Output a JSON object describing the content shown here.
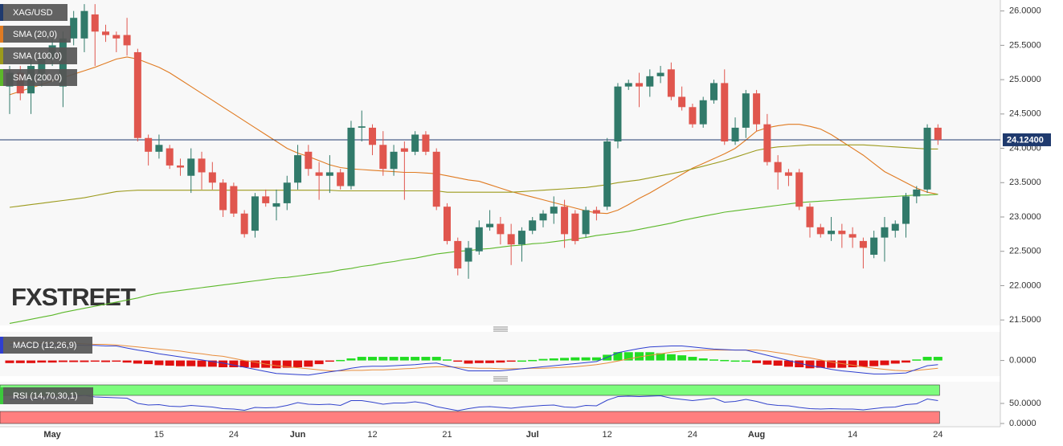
{
  "chart_data": [
    {
      "type": "candlestick",
      "name": "XAG/USD",
      "legend_color": "#1f3a6e",
      "up_color": "#317a6a",
      "down_color": "#e0564e",
      "categories": [
        null,
        null,
        null,
        null,
        "May",
        null,
        null,
        null,
        null,
        null,
        null,
        null,
        null,
        null,
        "15",
        null,
        null,
        null,
        null,
        null,
        null,
        "24",
        null,
        null,
        null,
        null,
        null,
        "Jun",
        null,
        null,
        null,
        null,
        null,
        null,
        "12",
        null,
        null,
        null,
        null,
        null,
        null,
        "21",
        null,
        null,
        null,
        null,
        null,
        null,
        null,
        "Jul",
        null,
        null,
        null,
        null,
        null,
        null,
        "12",
        null,
        null,
        null,
        null,
        null,
        null,
        null,
        "24",
        null,
        null,
        null,
        null,
        null,
        "Aug",
        null,
        null,
        null,
        null,
        null,
        null,
        null,
        null,
        "14",
        null,
        null,
        null,
        null,
        null,
        null,
        null,
        "24"
      ],
      "open": [
        24.9,
        25.1,
        24.8,
        25.0,
        25.3,
        24.9,
        25.6,
        25.6,
        25.95,
        25.7,
        25.65,
        25.65,
        25.4,
        24.15,
        23.95,
        24.0,
        23.75,
        23.6,
        23.85,
        23.65,
        23.5,
        23.45,
        23.05,
        22.8,
        23.3,
        23.15,
        23.2,
        23.5,
        23.95,
        23.65,
        23.6,
        23.65,
        23.45,
        24.3,
        24.3,
        24.05,
        23.7,
        24.0,
        23.95,
        24.2,
        23.95,
        23.15,
        22.65,
        22.35,
        22.5,
        22.85,
        22.9,
        22.75,
        22.6,
        22.8,
        22.95,
        23.05,
        23.15,
        23.05,
        22.75,
        23.1,
        23.15,
        24.1,
        24.9,
        24.95,
        24.9,
        25.05,
        25.15,
        24.75,
        24.6,
        24.35,
        24.7,
        24.95,
        24.1,
        24.3,
        24.8,
        24.35,
        23.8,
        23.65,
        23.65,
        23.15,
        22.85,
        22.75,
        22.8,
        22.75,
        22.65,
        22.45,
        22.7,
        22.8,
        22.9,
        23.3,
        23.4,
        24.3
      ],
      "high": [
        25.2,
        25.2,
        25.3,
        25.4,
        25.6,
        25.7,
        26.0,
        26.1,
        26.1,
        25.8,
        25.7,
        25.9,
        25.45,
        24.2,
        24.2,
        24.05,
        23.85,
        24.0,
        23.95,
        23.8,
        23.55,
        23.5,
        23.1,
        23.35,
        23.4,
        23.4,
        23.6,
        24.05,
        24.05,
        23.8,
        23.9,
        23.7,
        24.4,
        24.55,
        24.35,
        24.25,
        24.05,
        24.1,
        24.25,
        24.25,
        24.0,
        23.2,
        22.7,
        22.65,
        22.95,
        23.1,
        23.0,
        22.9,
        22.85,
        23.0,
        23.1,
        23.3,
        23.25,
        23.1,
        23.15,
        23.15,
        24.15,
        24.95,
        25.0,
        25.1,
        25.15,
        25.2,
        25.25,
        24.9,
        24.65,
        24.75,
        25.0,
        25.15,
        24.45,
        24.85,
        24.85,
        24.5,
        23.9,
        23.7,
        23.7,
        23.2,
        22.9,
        23.0,
        22.9,
        22.85,
        22.7,
        22.8,
        23.0,
        22.95,
        23.35,
        23.45,
        24.35,
        24.35
      ],
      "low": [
        24.5,
        24.7,
        24.5,
        24.9,
        25.2,
        24.6,
        25.5,
        25.4,
        25.2,
        25.55,
        25.4,
        25.35,
        24.1,
        23.75,
        23.85,
        23.7,
        23.6,
        23.35,
        23.4,
        23.4,
        23.0,
        23.0,
        22.7,
        22.7,
        23.15,
        22.95,
        23.1,
        23.4,
        23.6,
        23.25,
        23.35,
        23.4,
        23.4,
        24.1,
        23.9,
        23.6,
        23.6,
        23.25,
        23.9,
        23.9,
        23.1,
        22.6,
        22.15,
        22.1,
        22.45,
        22.8,
        22.6,
        22.3,
        22.35,
        22.75,
        22.85,
        22.9,
        22.55,
        22.6,
        22.7,
        22.95,
        23.1,
        24.0,
        24.85,
        24.6,
        24.75,
        24.95,
        24.7,
        24.55,
        24.3,
        24.3,
        24.65,
        24.05,
        24.05,
        24.15,
        24.25,
        23.75,
        23.4,
        23.45,
        23.1,
        22.7,
        22.7,
        22.65,
        22.55,
        22.55,
        22.25,
        22.4,
        22.35,
        22.7,
        22.7,
        23.2,
        23.35,
        24.05
      ],
      "close": [
        25.1,
        24.8,
        25.2,
        25.3,
        25.5,
        25.6,
        25.9,
        26.0,
        25.7,
        25.65,
        25.6,
        25.5,
        24.15,
        23.95,
        24.05,
        23.75,
        23.72,
        23.85,
        23.65,
        23.5,
        23.1,
        23.05,
        22.75,
        23.3,
        23.2,
        23.2,
        23.5,
        23.9,
        23.7,
        23.6,
        23.65,
        23.45,
        24.3,
        24.32,
        24.05,
        23.7,
        23.95,
        23.95,
        24.2,
        23.95,
        23.15,
        22.65,
        22.25,
        22.55,
        22.85,
        22.9,
        22.75,
        22.6,
        22.8,
        22.95,
        23.05,
        23.15,
        22.75,
        22.65,
        23.1,
        23.05,
        24.1,
        24.9,
        24.95,
        24.9,
        25.05,
        25.1,
        24.75,
        24.6,
        24.35,
        24.7,
        24.95,
        24.1,
        24.3,
        24.8,
        24.35,
        23.8,
        23.65,
        23.6,
        23.15,
        22.85,
        22.75,
        22.8,
        22.75,
        22.7,
        22.55,
        22.7,
        22.85,
        22.9,
        23.3,
        23.4,
        24.3,
        24.124
      ],
      "overlays": [
        {
          "name": "SMA (20,0)",
          "color": "#e07b22",
          "values": [
            24.78,
            24.83,
            24.88,
            24.93,
            24.98,
            25.03,
            25.08,
            25.13,
            25.18,
            25.24,
            25.3,
            25.33,
            25.3,
            25.24,
            25.18,
            25.1,
            25.0,
            24.9,
            24.8,
            24.7,
            24.6,
            24.5,
            24.4,
            24.3,
            24.2,
            24.1,
            24.0,
            23.93,
            23.88,
            23.82,
            23.76,
            23.72,
            23.7,
            23.69,
            23.68,
            23.67,
            23.66,
            23.65,
            23.65,
            23.64,
            23.63,
            23.6,
            23.57,
            23.54,
            23.52,
            23.47,
            23.42,
            23.37,
            23.33,
            23.29,
            23.25,
            23.21,
            23.17,
            23.13,
            23.09,
            23.06,
            23.05,
            23.1,
            23.18,
            23.27,
            23.35,
            23.44,
            23.53,
            23.62,
            23.71,
            23.78,
            23.85,
            23.92,
            24.0,
            24.12,
            24.25,
            24.3,
            24.33,
            24.35,
            24.35,
            24.32,
            24.28,
            24.2,
            24.1,
            24.0,
            23.9,
            23.78,
            23.66,
            23.58,
            23.5,
            23.42,
            23.36,
            23.33
          ]
        },
        {
          "name": "SMA (100,0)",
          "color": "#9c9a1c",
          "values": [
            23.14,
            23.16,
            23.18,
            23.2,
            23.22,
            23.24,
            23.26,
            23.28,
            23.31,
            23.34,
            23.37,
            23.38,
            23.39,
            23.39,
            23.39,
            23.39,
            23.39,
            23.39,
            23.39,
            23.39,
            23.39,
            23.39,
            23.39,
            23.39,
            23.39,
            23.39,
            23.39,
            23.39,
            23.39,
            23.39,
            23.39,
            23.38,
            23.38,
            23.38,
            23.38,
            23.38,
            23.38,
            23.38,
            23.38,
            23.38,
            23.38,
            23.36,
            23.36,
            23.36,
            23.36,
            23.36,
            23.36,
            23.36,
            23.37,
            23.38,
            23.39,
            23.4,
            23.41,
            23.42,
            23.43,
            23.45,
            23.47,
            23.5,
            23.52,
            23.54,
            23.57,
            23.6,
            23.63,
            23.66,
            23.7,
            23.74,
            23.78,
            23.82,
            23.87,
            23.92,
            23.97,
            24.0,
            24.02,
            24.03,
            24.04,
            24.05,
            24.05,
            24.05,
            24.05,
            24.05,
            24.05,
            24.04,
            24.03,
            24.02,
            24.01,
            24.0,
            23.99,
            23.99
          ]
        },
        {
          "name": "SMA (200,0)",
          "color": "#5cb82a",
          "values": [
            21.45,
            21.48,
            21.51,
            21.54,
            21.57,
            21.61,
            21.64,
            21.67,
            21.7,
            21.73,
            21.76,
            21.79,
            21.82,
            21.86,
            21.89,
            21.91,
            21.93,
            21.95,
            21.97,
            21.99,
            22.01,
            22.03,
            22.05,
            22.07,
            22.09,
            22.11,
            22.12,
            22.14,
            22.16,
            22.18,
            22.2,
            22.23,
            22.25,
            22.28,
            22.3,
            22.33,
            22.35,
            22.38,
            22.4,
            22.43,
            22.46,
            22.48,
            22.5,
            22.51,
            22.53,
            22.54,
            22.56,
            22.58,
            22.59,
            22.61,
            22.62,
            22.64,
            22.66,
            22.68,
            22.7,
            22.73,
            22.75,
            22.77,
            22.79,
            22.82,
            22.85,
            22.88,
            22.91,
            22.95,
            22.98,
            23.01,
            23.04,
            23.07,
            23.09,
            23.11,
            23.13,
            23.15,
            23.17,
            23.19,
            23.21,
            23.22,
            23.23,
            23.24,
            23.25,
            23.26,
            23.27,
            23.28,
            23.29,
            23.3,
            23.31,
            23.32,
            23.32,
            23.33
          ]
        }
      ],
      "last_price": {
        "value": 24.124,
        "label": "24.12400"
      },
      "last_price_color": "#1f3a6e",
      "ylim": [
        21.42,
        26.16
      ],
      "yticks": [
        {
          "value": 21.5,
          "label": "21.5000"
        },
        {
          "value": 22,
          "label": "22.0000"
        },
        {
          "value": 22.5,
          "label": "22.5000"
        },
        {
          "value": 23,
          "label": "23.0000"
        },
        {
          "value": 23.5,
          "label": "23.5000"
        },
        {
          "value": 24,
          "label": "24.0000"
        },
        {
          "value": 24.5,
          "label": "24.5000"
        },
        {
          "value": 25,
          "label": "25.0000"
        },
        {
          "value": 25.5,
          "label": "25.5000"
        },
        {
          "value": 26,
          "label": "26.0000"
        }
      ],
      "watermark": "FXSTREET"
    },
    {
      "type": "macd",
      "name": "MACD (12,26,9)",
      "legend_color": "#2f3fd0",
      "macd": {
        "color": "#2f3fd0",
        "values": [
          0.3,
          0.3,
          0.3,
          0.3,
          0.3,
          0.3,
          0.3,
          0.29,
          0.29,
          0.28,
          0.28,
          0.24,
          0.2,
          0.17,
          0.13,
          0.1,
          0.07,
          0.04,
          0.01,
          -0.02,
          -0.05,
          -0.09,
          -0.13,
          -0.17,
          -0.21,
          -0.25,
          -0.26,
          -0.27,
          -0.28,
          -0.25,
          -0.22,
          -0.19,
          -0.15,
          -0.12,
          -0.11,
          -0.11,
          -0.1,
          -0.09,
          -0.08,
          -0.06,
          -0.05,
          -0.1,
          -0.15,
          -0.2,
          -0.2,
          -0.2,
          -0.2,
          -0.18,
          -0.16,
          -0.14,
          -0.12,
          -0.1,
          -0.08,
          -0.06,
          -0.04,
          -0.02,
          0.06,
          0.15,
          0.19,
          0.23,
          0.26,
          0.27,
          0.28,
          0.28,
          0.26,
          0.24,
          0.22,
          0.21,
          0.2,
          0.2,
          0.15,
          0.1,
          0.05,
          0.0,
          -0.05,
          -0.1,
          -0.13,
          -0.17,
          -0.2,
          -0.22,
          -0.24,
          -0.26,
          -0.26,
          -0.25,
          -0.24,
          -0.17,
          -0.1,
          -0.08
        ]
      },
      "signal": {
        "color": "#e88d3c",
        "values": [
          0.35,
          0.35,
          0.35,
          0.34,
          0.34,
          0.33,
          0.33,
          0.32,
          0.31,
          0.31,
          0.3,
          0.28,
          0.26,
          0.24,
          0.22,
          0.2,
          0.18,
          0.15,
          0.13,
          0.1,
          0.08,
          0.04,
          0.0,
          -0.03,
          -0.07,
          -0.1,
          -0.12,
          -0.14,
          -0.16,
          -0.18,
          -0.2,
          -0.2,
          -0.19,
          -0.19,
          -0.18,
          -0.18,
          -0.17,
          -0.16,
          -0.15,
          -0.13,
          -0.12,
          -0.12,
          -0.13,
          -0.14,
          -0.15,
          -0.15,
          -0.16,
          -0.16,
          -0.16,
          -0.15,
          -0.15,
          -0.14,
          -0.13,
          -0.12,
          -0.1,
          -0.08,
          -0.05,
          -0.01,
          0.03,
          0.07,
          0.1,
          0.13,
          0.16,
          0.18,
          0.19,
          0.2,
          0.2,
          0.2,
          0.2,
          0.2,
          0.2,
          0.18,
          0.15,
          0.12,
          0.08,
          0.05,
          0.01,
          -0.03,
          -0.06,
          -0.09,
          -0.12,
          -0.15,
          -0.17,
          -0.19,
          -0.2,
          -0.19,
          -0.17,
          -0.15
        ]
      },
      "histogram": {
        "up_color": "#22dd22",
        "down_color": "#e01010",
        "values": [
          -0.05,
          -0.05,
          -0.05,
          -0.04,
          -0.04,
          -0.03,
          -0.03,
          -0.03,
          -0.02,
          -0.03,
          -0.02,
          -0.04,
          -0.06,
          -0.07,
          -0.09,
          -0.1,
          -0.11,
          -0.11,
          -0.12,
          -0.12,
          -0.13,
          -0.13,
          -0.13,
          -0.14,
          -0.14,
          -0.15,
          -0.14,
          -0.13,
          -0.12,
          -0.07,
          -0.02,
          0.01,
          0.04,
          0.07,
          0.07,
          0.07,
          0.07,
          0.07,
          0.07,
          0.07,
          0.07,
          0.02,
          -0.02,
          -0.06,
          -0.05,
          -0.05,
          -0.04,
          -0.02,
          0.0,
          0.01,
          0.03,
          0.04,
          0.05,
          0.06,
          0.06,
          0.06,
          0.11,
          0.16,
          0.16,
          0.16,
          0.16,
          0.14,
          0.12,
          0.1,
          0.07,
          0.04,
          0.02,
          0.01,
          0.0,
          0.0,
          -0.05,
          -0.08,
          -0.1,
          -0.12,
          -0.13,
          -0.15,
          -0.14,
          -0.14,
          -0.14,
          -0.13,
          -0.12,
          -0.11,
          -0.09,
          -0.06,
          -0.04,
          0.02,
          0.07,
          0.07
        ]
      },
      "ylim": [
        -0.3,
        0.55
      ],
      "yticks": [
        {
          "value": 0,
          "label": "0.0000"
        }
      ]
    },
    {
      "type": "rsi",
      "name": "RSI (14,70,30,1)",
      "legend_color": "#3cc83c",
      "color": "#3344cc",
      "overbought": 70,
      "oversold": 30,
      "overbought_color": "#7dfc7d",
      "oversold_color": "#ff7f7f",
      "values": [
        60,
        62,
        60,
        63,
        65,
        64,
        67,
        70,
        66,
        65,
        64,
        63,
        50,
        46,
        47,
        43,
        42,
        45,
        43,
        41,
        37,
        36,
        33,
        40,
        39,
        40,
        45,
        52,
        48,
        47,
        48,
        45,
        57,
        57,
        53,
        48,
        51,
        51,
        54,
        50,
        42,
        37,
        32,
        37,
        41,
        42,
        40,
        38,
        41,
        43,
        45,
        46,
        41,
        40,
        45,
        44,
        58,
        67,
        68,
        67,
        68,
        69,
        63,
        60,
        57,
        60,
        63,
        53,
        55,
        60,
        55,
        48,
        45,
        44,
        40,
        37,
        36,
        37,
        36,
        36,
        34,
        37,
        40,
        41,
        47,
        49,
        61,
        57
      ],
      "ylim": [
        -4,
        104
      ],
      "yticks": [
        {
          "value": 0,
          "label": "0.0000"
        },
        {
          "value": 50,
          "label": "50.0000"
        }
      ]
    }
  ]
}
